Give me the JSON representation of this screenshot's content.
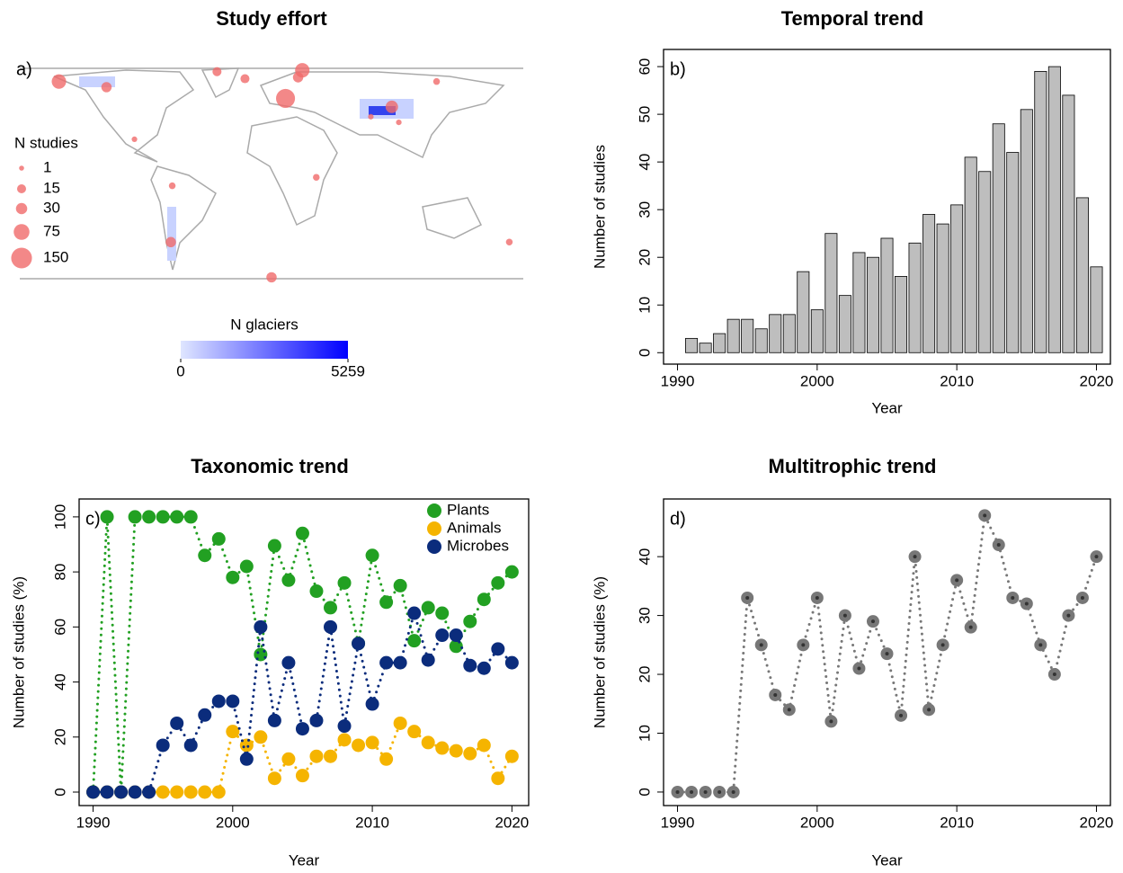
{
  "chart_data": [
    {
      "type": "map",
      "title": "Study effort",
      "panel_label": "a)",
      "lon": [
        -152,
        -118,
        -39,
        -19,
        22,
        19,
        10,
        118,
        86,
        71,
        91,
        -98,
        -71,
        32,
        -72,
        170,
        0
      ],
      "lat": [
        80,
        76,
        87,
        82,
        88,
        83,
        68,
        80,
        62,
        55,
        51,
        39,
        6,
        12,
        -34,
        -34,
        -59
      ],
      "values": [
        60,
        23,
        15,
        15,
        60,
        23,
        120,
        5,
        40,
        2,
        2,
        2,
        5,
        5,
        23,
        5,
        23
      ],
      "color": "#f06a6a",
      "xlim": [
        -180,
        180
      ],
      "ylim": [
        -60,
        90
      ],
      "size_legend": {
        "title": "N studies",
        "values": [
          1,
          15,
          30,
          75,
          150
        ]
      },
      "colorbar": {
        "title": "N glaciers",
        "lim": [
          0,
          5259
        ],
        "ticks": [
          0,
          5259
        ],
        "colors": [
          "#dfe6ff",
          "#0000ff"
        ]
      }
    },
    {
      "type": "bar",
      "title": "Temporal trend",
      "panel_label": "b)",
      "x_label": "Year",
      "y_label": "Number of studies",
      "x": [
        1991,
        1992,
        1993,
        1994,
        1995,
        1996,
        1997,
        1998,
        1999,
        2000,
        2001,
        2002,
        2003,
        2004,
        2005,
        2006,
        2007,
        2008,
        2009,
        2010,
        2011,
        2012,
        2013,
        2014,
        2015,
        2016,
        2017,
        2018,
        2019,
        2020
      ],
      "values": [
        3,
        2,
        4,
        7,
        7,
        5,
        8,
        8,
        17,
        9,
        25,
        12,
        21,
        20,
        24,
        16,
        23,
        29,
        27,
        31,
        41,
        38,
        48,
        42,
        51,
        59,
        60,
        54,
        32.5,
        18
      ],
      "color": "#bebebe",
      "xlim": [
        1989,
        2021
      ],
      "ylim": [
        -2.4,
        63.6
      ],
      "xticks": [
        1990,
        2000,
        2010,
        2020
      ],
      "yticks": [
        0,
        10,
        20,
        30,
        40,
        50,
        60
      ]
    },
    {
      "type": "line",
      "title": "Taxonomic trend",
      "panel_label": "c)",
      "x_label": "Year",
      "y_label": "Number of studies (%)",
      "x": [
        1990,
        1991,
        1992,
        1993,
        1994,
        1995,
        1996,
        1997,
        1998,
        1999,
        2000,
        2001,
        2002,
        2003,
        2004,
        2005,
        2006,
        2007,
        2008,
        2009,
        2010,
        2011,
        2012,
        2013,
        2014,
        2015,
        2016,
        2017,
        2018,
        2019,
        2020
      ],
      "series": [
        {
          "name": "Plants",
          "color": "#22a022",
          "values": [
            0,
            100,
            0,
            100,
            100,
            100,
            100,
            100,
            86,
            92,
            78,
            82,
            50,
            89.5,
            77,
            94,
            73,
            67,
            76,
            54,
            86,
            69,
            75,
            55,
            67,
            65,
            53,
            62,
            70,
            76,
            80
          ]
        },
        {
          "name": "Animals",
          "color": "#f5b400",
          "values": [
            0,
            0,
            0,
            0,
            0,
            0,
            0,
            0,
            0,
            0,
            22,
            17,
            20,
            5,
            12,
            6,
            13,
            13,
            19,
            17,
            18,
            12,
            25,
            22,
            18,
            16,
            15,
            14,
            17,
            5,
            13
          ]
        },
        {
          "name": "Microbes",
          "color": "#0b2c7c",
          "values": [
            0,
            0,
            0,
            0,
            0,
            17,
            25,
            17,
            28,
            33,
            33,
            12,
            60,
            26,
            47,
            23,
            26,
            60,
            24,
            54,
            32,
            47,
            47,
            65,
            48,
            57,
            57,
            46,
            45,
            52,
            47
          ]
        }
      ],
      "legend": "topright",
      "xlim": [
        1989,
        2021.2
      ],
      "ylim": [
        -4.9,
        106.5
      ],
      "xticks": [
        1990,
        2000,
        2010,
        2020
      ],
      "yticks": [
        0,
        20,
        40,
        60,
        80,
        100
      ]
    },
    {
      "type": "line",
      "title": "Multitrophic trend",
      "panel_label": "d)",
      "x_label": "Year",
      "y_label": "Number of studies (%)",
      "x": [
        1990,
        1991,
        1992,
        1993,
        1994,
        1995,
        1996,
        1997,
        1998,
        1999,
        2000,
        2001,
        2002,
        2003,
        2004,
        2005,
        2006,
        2007,
        2008,
        2009,
        2010,
        2011,
        2012,
        2013,
        2014,
        2015,
        2016,
        2017,
        2018,
        2019,
        2020
      ],
      "series": [
        {
          "color": "#777777",
          "values": [
            0,
            0,
            0,
            0,
            0,
            33,
            25,
            16.5,
            14,
            25,
            33,
            12,
            30,
            21,
            29,
            23.5,
            13,
            40,
            14,
            25,
            36,
            28,
            47,
            42,
            33,
            32,
            25,
            20,
            30,
            33,
            40
          ]
        }
      ],
      "xlim": [
        1989,
        2021
      ],
      "ylim": [
        -2.3,
        49.8
      ],
      "xticks": [
        1990,
        2000,
        2010,
        2020
      ],
      "yticks": [
        0,
        10,
        20,
        30,
        40
      ]
    }
  ]
}
